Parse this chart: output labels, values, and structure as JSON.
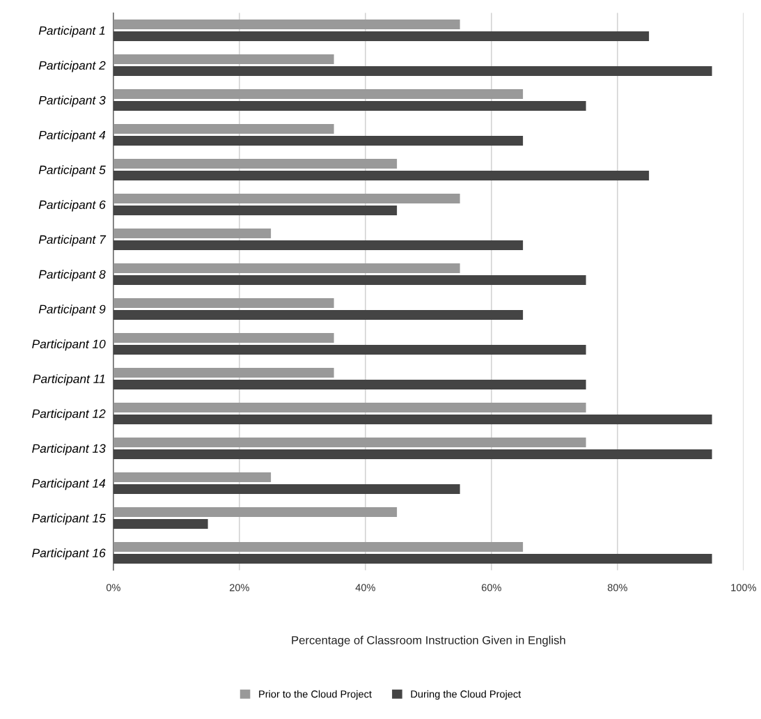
{
  "chart_data": {
    "type": "bar",
    "orientation": "horizontal",
    "categories": [
      "Participant 1",
      "Participant 2",
      "Participant 3",
      "Participant 4",
      "Participant 5",
      "Participant 6",
      "Participant 7",
      "Participant 8",
      "Participant 9",
      "Participant 10",
      "Participant 11",
      "Participant 12",
      "Participant 13",
      "Participant 14",
      "Participant 15",
      "Participant 16"
    ],
    "series": [
      {
        "name": "Prior to the Cloud Project",
        "color": "#999999",
        "values": [
          55,
          35,
          65,
          35,
          45,
          55,
          25,
          55,
          35,
          35,
          35,
          75,
          75,
          25,
          45,
          65
        ]
      },
      {
        "name": "During the Cloud Project",
        "color": "#444444",
        "values": [
          85,
          95,
          75,
          65,
          85,
          45,
          65,
          75,
          65,
          75,
          75,
          95,
          95,
          55,
          15,
          95
        ]
      }
    ],
    "xlabel": "Percentage of Classroom Instruction Given in English",
    "xlim": [
      0,
      100
    ],
    "xticks": [
      {
        "value": 0,
        "label": "0%"
      },
      {
        "value": 20,
        "label": "20%"
      },
      {
        "value": 40,
        "label": "40%"
      },
      {
        "value": 60,
        "label": "60%"
      },
      {
        "value": 80,
        "label": "80%"
      },
      {
        "value": 100,
        "label": "100%"
      }
    ],
    "grid": "x",
    "legend": "bottom"
  }
}
